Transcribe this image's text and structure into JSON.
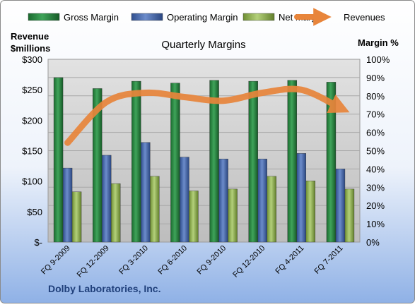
{
  "chart_data": {
    "type": "bar",
    "title": "Quarterly Margins",
    "company": "Dolby Laboratories, Inc.",
    "left_axis_title": [
      "Revenue",
      "$millions"
    ],
    "right_axis_title": "Margin %",
    "categories": [
      "FQ 9-2009",
      "FQ 12-2009",
      "FQ 3-2010",
      "FQ 6-2010",
      "FQ 9-2010",
      "FQ 12-2010",
      "FQ 4-2011",
      "FQ 7-2011"
    ],
    "left_ticks": [
      "$-",
      "$50",
      "$100",
      "$150",
      "$200",
      "$250",
      "$300"
    ],
    "left_ylim": [
      0,
      300
    ],
    "right_ticks": [
      "0%",
      "10%",
      "20%",
      "30%",
      "40%",
      "50%",
      "60%",
      "70%",
      "80%",
      "90%",
      "100%"
    ],
    "right_ylim": [
      0,
      100
    ],
    "series": [
      {
        "name": "Gross Margin",
        "axis": "right",
        "kind": "bar",
        "color": "#2E8B46",
        "values": [
          90,
          84,
          88,
          87,
          88.5,
          88,
          88.5,
          87.5
        ]
      },
      {
        "name": "Operating Margin",
        "axis": "right",
        "kind": "bar",
        "color": "#4F6FB0",
        "values": [
          40.5,
          47.5,
          54.5,
          46.5,
          45.5,
          45.5,
          48.5,
          40
        ]
      },
      {
        "name": "Net Margin",
        "axis": "right",
        "kind": "bar",
        "color": "#9BBB59",
        "values": [
          27.5,
          32,
          36,
          28,
          29,
          36,
          33.5,
          29
        ]
      },
      {
        "name": "Revenues",
        "axis": "left",
        "kind": "line",
        "color": "#E8853B",
        "values": [
          163,
          230,
          245,
          238,
          232,
          245,
          250,
          220
        ]
      }
    ],
    "legend_position": "top",
    "grid": true
  }
}
